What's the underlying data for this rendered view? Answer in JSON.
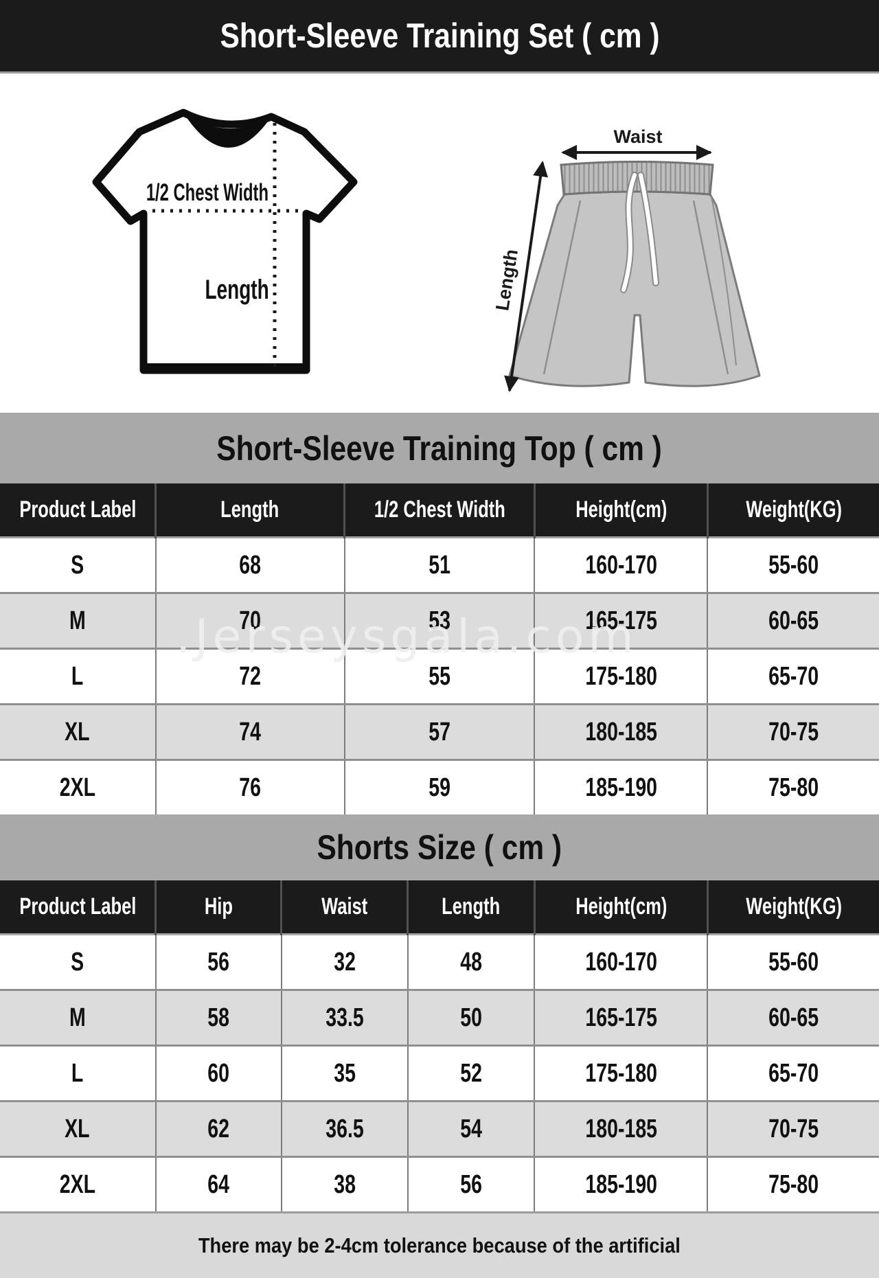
{
  "header": {
    "title": "Short-Sleeve Training Set ( cm )"
  },
  "diagram": {
    "tshirt": {
      "chest_width_label": "1/2 Chest Width",
      "length_label": "Length"
    },
    "shorts": {
      "waist_label": "Waist",
      "length_label": "Length"
    }
  },
  "watermark": ".Jerseysgala.com",
  "top_table": {
    "title": "Short-Sleeve Training Top ( cm )",
    "headers": [
      "Product Label",
      "Length",
      "1/2 Chest Width",
      "Height(cm)",
      "Weight(KG)"
    ],
    "rows": [
      [
        "S",
        "68",
        "51",
        "160-170",
        "55-60"
      ],
      [
        "M",
        "70",
        "53",
        "165-175",
        "60-65"
      ],
      [
        "L",
        "72",
        "55",
        "175-180",
        "65-70"
      ],
      [
        "XL",
        "74",
        "57",
        "180-185",
        "70-75"
      ],
      [
        "2XL",
        "76",
        "59",
        "185-190",
        "75-80"
      ]
    ]
  },
  "shorts_table": {
    "title": "Shorts Size ( cm )",
    "headers": [
      "Product Label",
      "Hip",
      "Waist",
      "Length",
      "Height(cm)",
      "Weight(KG)"
    ],
    "rows": [
      [
        "S",
        "56",
        "32",
        "48",
        "160-170",
        "55-60"
      ],
      [
        "M",
        "58",
        "33.5",
        "50",
        "165-175",
        "60-65"
      ],
      [
        "L",
        "60",
        "35",
        "52",
        "175-180",
        "65-70"
      ],
      [
        "XL",
        "62",
        "36.5",
        "54",
        "180-185",
        "70-75"
      ],
      [
        "2XL",
        "64",
        "38",
        "56",
        "185-190",
        "75-80"
      ]
    ]
  },
  "footer": {
    "note": "There may be 2-4cm tolerance because of the artificial"
  },
  "colors": {
    "header_bg": "#1b1b1b",
    "band_bg": "#a9a9a9",
    "alt_row_bg": "#dcdcdc",
    "footer_bg": "#d9d9d9",
    "shorts_fill": "#c5c5c5",
    "waistband_fill": "#bdbdbd"
  }
}
